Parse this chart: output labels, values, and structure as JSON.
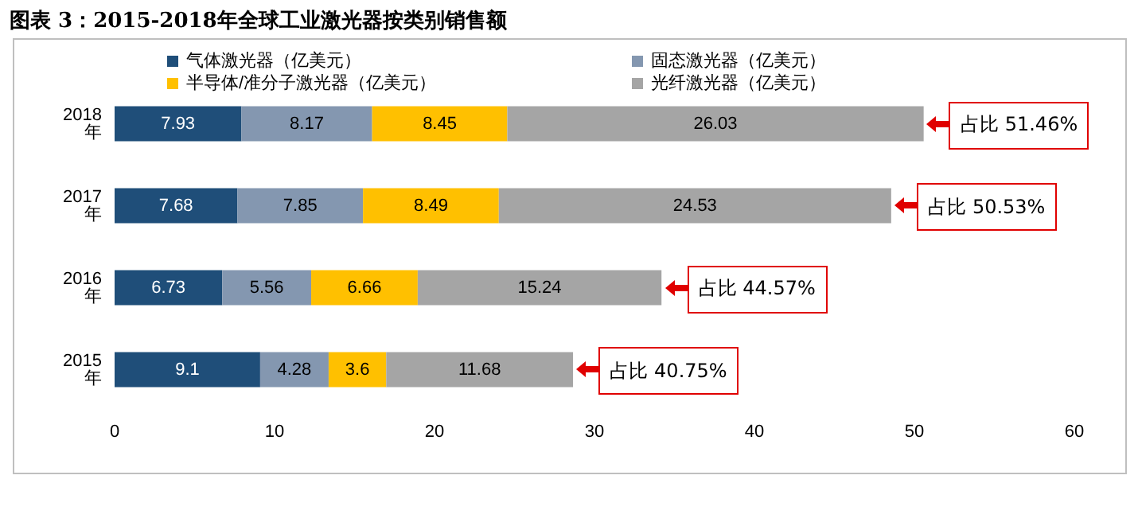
{
  "chart_data": {
    "type": "bar",
    "orientation": "horizontal",
    "stacked": true,
    "title": "图表 3：2015-2018年全球工业激光器按类别销售额",
    "categories": [
      "2018年",
      "2017年",
      "2016年",
      "2015年"
    ],
    "series": [
      {
        "name": "气体激光器（亿美元）",
        "color": "#1f4e79",
        "values": [
          7.93,
          7.68,
          6.73,
          9.1
        ]
      },
      {
        "name": "固态激光器（亿美元）",
        "color": "#8497b0",
        "values": [
          8.17,
          7.85,
          5.56,
          4.28
        ]
      },
      {
        "name": "半导体/准分子激光器（亿美元）",
        "color": "#ffc000",
        "values": [
          8.45,
          8.49,
          6.66,
          3.6
        ]
      },
      {
        "name": "光纤激光器（亿美元）",
        "color": "#a5a5a5",
        "values": [
          26.03,
          24.53,
          15.24,
          11.68
        ]
      }
    ],
    "xlim": [
      0,
      60
    ],
    "xticks": [
      0,
      10,
      20,
      30,
      40,
      50,
      60
    ],
    "grid": false,
    "legend": "top",
    "data_labels": true,
    "annotations": [
      {
        "text": "占比 51.46%",
        "x": 50.58,
        "y": "2018年"
      },
      {
        "text": "占比 50.53%",
        "x": 48.55,
        "y": "2017年"
      },
      {
        "text": "占比 44.57%",
        "x": 34.19,
        "y": "2016年"
      },
      {
        "text": "占比 40.75%",
        "x": 28.66,
        "y": "2015年"
      }
    ]
  }
}
